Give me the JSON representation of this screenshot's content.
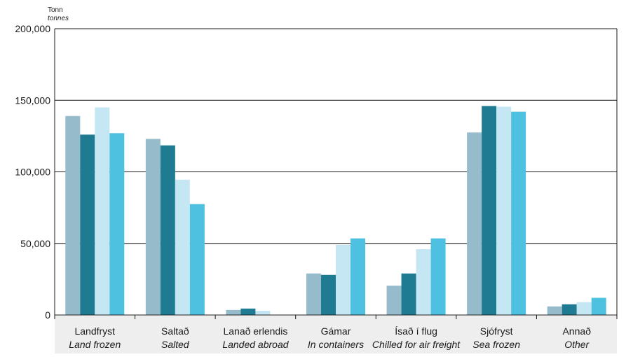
{
  "chart_data": {
    "type": "bar",
    "unit_label": "Tonn",
    "unit_label_en": "tonnes",
    "categories": [
      {
        "is": "Landfryst",
        "en": "Land frozen"
      },
      {
        "is": "Saltað",
        "en": "Salted"
      },
      {
        "is": "Lanað erlendis",
        "en": "Landed abroad"
      },
      {
        "is": "Gámar",
        "en": "In containers"
      },
      {
        "is": "Ísað í flug",
        "en": "Chilled for air freight"
      },
      {
        "is": "Sjófryst",
        "en": "Sea frozen"
      },
      {
        "is": "Annað",
        "en": "Other"
      }
    ],
    "series": [
      {
        "color": "#96bccb",
        "values": [
          139000,
          123000,
          3500,
          29000,
          20500,
          127500,
          6000
        ]
      },
      {
        "color": "#1f7b91",
        "values": [
          126000,
          118500,
          4500,
          28000,
          29000,
          146000,
          7500
        ]
      },
      {
        "color": "#c5e7f4",
        "values": [
          145000,
          94500,
          3000,
          49000,
          46000,
          145500,
          9000
        ]
      },
      {
        "color": "#4fc1e0",
        "values": [
          127000,
          77500,
          0,
          53500,
          53500,
          142000,
          12000
        ]
      }
    ],
    "yticks": [
      "0",
      "50,000",
      "100,000",
      "150,000",
      "200,000"
    ],
    "ytick_values": [
      0,
      50000,
      100000,
      150000,
      200000
    ],
    "ylim": [
      0,
      200000
    ],
    "grid": true,
    "legend": "none"
  }
}
